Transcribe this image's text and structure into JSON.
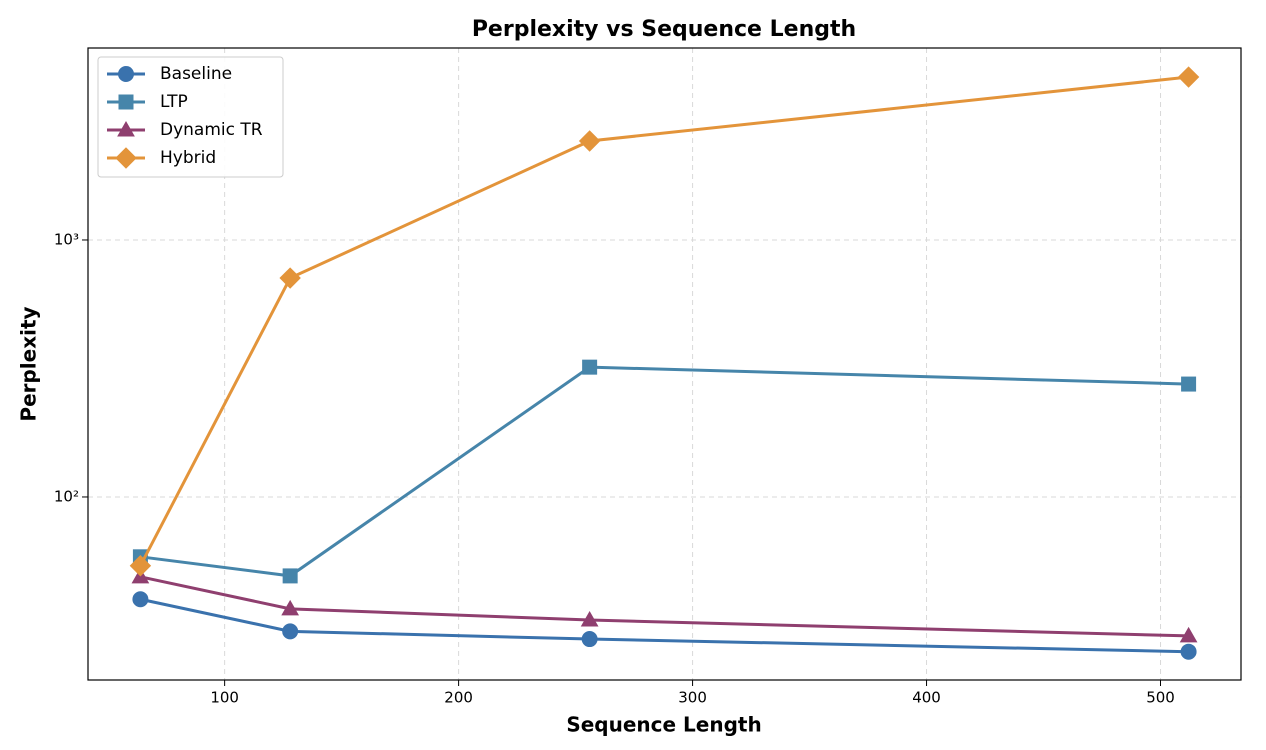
{
  "chart_data": {
    "type": "line",
    "title": "Perplexity vs Sequence Length",
    "xlabel": "Sequence Length",
    "ylabel": "Perplexity",
    "x": [
      64,
      128,
      256,
      512
    ],
    "xlim": [
      41.6,
      534.4
    ],
    "xticks": [
      100,
      200,
      300,
      400,
      500
    ],
    "ylim": [
      19.4,
      5585
    ],
    "yticks": [
      {
        "value": 100,
        "label": "10²"
      },
      {
        "value": 1000,
        "label": "10³"
      }
    ],
    "log_y": true,
    "grid": true,
    "legend": "upper left",
    "series": [
      {
        "name": "Baseline",
        "color": "#3a72ad",
        "marker": "circle",
        "values": [
          40,
          30,
          28,
          25
        ]
      },
      {
        "name": "LTP",
        "color": "#4685aa",
        "marker": "square",
        "values": [
          58.5,
          49.3,
          320,
          275
        ]
      },
      {
        "name": "Dynamic TR",
        "color": "#8f3f6f",
        "marker": "triangle",
        "values": [
          48.9,
          36.7,
          33.2,
          28.8
        ]
      },
      {
        "name": "Hybrid",
        "color": "#e3943a",
        "marker": "diamond",
        "values": [
          54,
          711,
          2427,
          4305
        ]
      }
    ]
  }
}
